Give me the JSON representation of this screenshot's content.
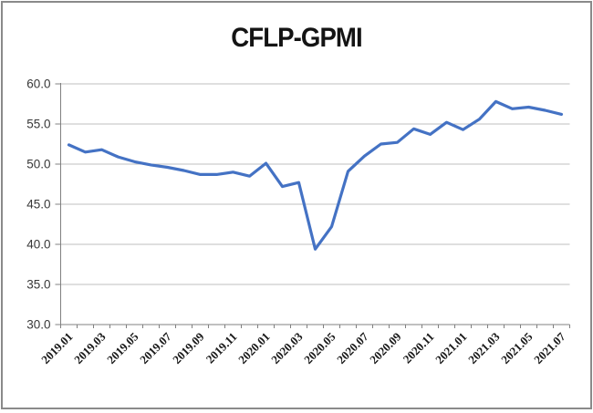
{
  "window": {
    "background": "#ffffff",
    "frame_border_color": "#8a8a8a"
  },
  "chart_data": {
    "type": "line",
    "title": "CFLP-GPMI",
    "xlabel": "",
    "ylabel": "",
    "ylim": [
      30.0,
      60.0
    ],
    "ytick_step": 5.0,
    "ytick_labels": [
      "60.0",
      "55.0",
      "50.0",
      "45.0",
      "40.0",
      "35.0",
      "30.0"
    ],
    "grid": true,
    "legend_position": "none",
    "xtick_label_every": 2,
    "xtick_label_rotation_deg": 45,
    "gridline_color": "#bfbfbf",
    "axis_color": "#808080",
    "ylabel_color": "#383838",
    "xlabel_color": "#1a1a1a",
    "categories": [
      "2019.01",
      "2019.02",
      "2019.03",
      "2019.04",
      "2019.05",
      "2019.06",
      "2019.07",
      "2019.08",
      "2019.09",
      "2019.10",
      "2019.11",
      "2019.12",
      "2020.01",
      "2020.02",
      "2020.03",
      "2020.04",
      "2020.05",
      "2020.06",
      "2020.07",
      "2020.08",
      "2020.09",
      "2020.10",
      "2020.11",
      "2020.12",
      "2021.01",
      "2021.02",
      "2021.03",
      "2021.04",
      "2021.05",
      "2021.06",
      "2021.07"
    ],
    "series": [
      {
        "name": "CFLP-GPMI",
        "color": "#4472C4",
        "values": [
          52.4,
          51.5,
          51.8,
          50.9,
          50.3,
          49.9,
          49.6,
          49.2,
          48.7,
          48.7,
          49.0,
          48.5,
          50.1,
          47.2,
          47.7,
          39.4,
          42.2,
          49.1,
          51.0,
          52.5,
          52.7,
          54.4,
          53.7,
          55.2,
          54.3,
          55.6,
          57.8,
          56.9,
          57.1,
          56.7,
          56.2
        ]
      }
    ]
  }
}
